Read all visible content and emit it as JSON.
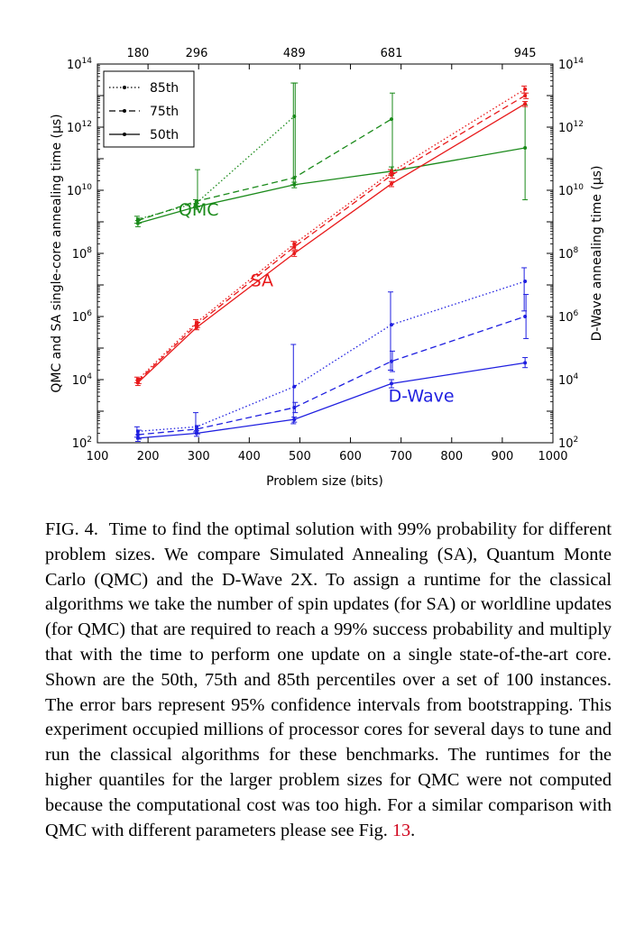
{
  "chart_data": {
    "type": "line",
    "xlabel": "Problem size (bits)",
    "ylabel_left": "QMC and SA single-core annealing time (μs)",
    "ylabel_right": "D-Wave annealing time (μs)",
    "xlim": [
      100,
      1000
    ],
    "ylim": [
      100,
      100000000000000
    ],
    "yscale": "log",
    "x_ticks": [
      "100",
      "200",
      "300",
      "400",
      "500",
      "600",
      "700",
      "800",
      "900",
      "1000"
    ],
    "top_ticks": [
      {
        "x": 180,
        "label": "180"
      },
      {
        "x": 296,
        "label": "296"
      },
      {
        "x": 489,
        "label": "489"
      },
      {
        "x": 681,
        "label": "681"
      },
      {
        "x": 945,
        "label": "945"
      }
    ],
    "y_tick_exponents": [
      "2",
      "4",
      "6",
      "8",
      "10",
      "12",
      "14"
    ],
    "legend": {
      "placement": "top-left",
      "entries": [
        {
          "label": "85th",
          "dash": "dotted"
        },
        {
          "label": "75th",
          "dash": "dashed"
        },
        {
          "label": "50th",
          "dash": "solid"
        }
      ]
    },
    "series": [
      {
        "group": "QMC",
        "quantile": "85th",
        "color": "#1a8a1a",
        "dash": "dotted",
        "x": [
          180,
          296,
          489
        ],
        "y": [
          1200000000.0,
          4000000000.0,
          2200000000000.0
        ],
        "err": [
          [
            900000000.0,
            1500000000.0
          ],
          [
            3000000000.0,
            5000000000.0
          ],
          [
            15000000000.0,
            25000000000000.0
          ]
        ]
      },
      {
        "group": "QMC",
        "quantile": "75th",
        "color": "#1a8a1a",
        "dash": "dashed",
        "x": [
          180,
          296,
          489,
          681
        ],
        "y": [
          1100000000.0,
          4500000000.0,
          25000000000.0,
          1800000000000.0
        ],
        "err": [
          [
            900000000.0,
            1300000000.0
          ],
          [
            3000000000.0,
            45000000000.0
          ],
          [
            15000000000.0,
            25000000000000.0
          ],
          [
            35000000000.0,
            12000000000000.0
          ]
        ]
      },
      {
        "group": "QMC",
        "quantile": "50th",
        "color": "#1a8a1a",
        "dash": "solid",
        "x": [
          180,
          296,
          489,
          681,
          945
        ],
        "y": [
          900000000.0,
          3000000000.0,
          15000000000.0,
          40000000000.0,
          220000000000.0
        ],
        "err": [
          [
            700000000.0,
            1100000000.0
          ],
          [
            2500000000.0,
            3800000000.0
          ],
          [
            12000000000.0,
            18000000000.0
          ],
          [
            30000000000.0,
            55000000000.0
          ],
          [
            5000000000.0,
            5000000000000.0
          ]
        ]
      },
      {
        "group": "SA",
        "quantile": "85th",
        "color": "#e8191a",
        "dash": "dotted",
        "x": [
          180,
          296,
          489,
          681,
          945
        ],
        "y": [
          10000.0,
          650000.0,
          200000000.0,
          38000000000.0,
          16000000000000.0
        ],
        "err": [
          [
            8000.0,
            12000.0
          ],
          [
            500000.0,
            800000.0
          ],
          [
            160000000.0,
            240000000.0
          ],
          [
            30000000000.0,
            45000000000.0
          ],
          [
            12000000000000.0,
            20000000000000.0
          ]
        ]
      },
      {
        "group": "SA",
        "quantile": "75th",
        "color": "#e8191a",
        "dash": "dashed",
        "x": [
          180,
          296,
          489,
          681,
          945
        ],
        "y": [
          9000.0,
          550000.0,
          160000000.0,
          30000000000.0,
          10000000000000.0
        ],
        "err": [
          [
            7500.0,
            11000.0
          ],
          [
            450000.0,
            650000.0
          ],
          [
            130000000.0,
            190000000.0
          ],
          [
            24000000000.0,
            36000000000.0
          ],
          [
            8000000000000.0,
            12000000000000.0
          ]
        ]
      },
      {
        "group": "SA",
        "quantile": "50th",
        "color": "#e8191a",
        "dash": "solid",
        "x": [
          180,
          296,
          489,
          681,
          945
        ],
        "y": [
          8000.0,
          450000.0,
          100000000.0,
          16000000000.0,
          5500000000000.0
        ],
        "err": [
          [
            6500.0,
            9500.0
          ],
          [
            380000.0,
            520000.0
          ],
          [
            80000000.0,
            120000000.0
          ],
          [
            13000000000.0,
            19000000000.0
          ],
          [
            4500000000000.0,
            6500000000000.0
          ]
        ]
      },
      {
        "group": "D-Wave",
        "quantile": "85th",
        "color": "#1f1fe0",
        "dash": "dotted",
        "x": [
          180,
          296,
          489,
          681,
          945
        ],
        "y": [
          230.0,
          320.0,
          6000.0,
          550000.0,
          13000000.0
        ],
        "err": [
          [
            150.0,
            320.0
          ],
          [
            220.0,
            900.0
          ],
          [
            400.0,
            130000.0
          ],
          [
            20000.0,
            6000000.0
          ],
          [
            1500000.0,
            35000000.0
          ]
        ]
      },
      {
        "group": "D-Wave",
        "quantile": "75th",
        "color": "#1f1fe0",
        "dash": "dashed",
        "x": [
          180,
          296,
          489,
          681,
          945
        ],
        "y": [
          180.0,
          270.0,
          1300.0,
          38000.0,
          1000000.0
        ],
        "err": [
          [
            130.0,
            250.0
          ],
          [
            190.0,
            350.0
          ],
          [
            900.0,
            1900.0
          ],
          [
            18000.0,
            80000.0
          ],
          [
            200000.0,
            5000000.0
          ]
        ]
      },
      {
        "group": "D-Wave",
        "quantile": "50th",
        "color": "#1f1fe0",
        "dash": "solid",
        "x": [
          180,
          296,
          489,
          681,
          945
        ],
        "y": [
          140.0,
          200.0,
          550.0,
          7500.0,
          34000.0
        ],
        "err": [
          [
            110.0,
            180.0
          ],
          [
            160.0,
            240.0
          ],
          [
            450.0,
            650.0
          ],
          [
            5500.0,
            10000.0
          ],
          [
            24000.0,
            50000.0
          ]
        ]
      }
    ],
    "annotations": [
      {
        "text": "QMC",
        "color": "#1a8a1a",
        "x": 300,
        "y": 1600000000.0
      },
      {
        "text": "SA",
        "color": "#e8191a",
        "x": 425,
        "y": 9000000.0
      },
      {
        "text": "D-Wave",
        "color": "#1f1fe0",
        "x": 740,
        "y": 2000.0
      }
    ]
  },
  "caption": {
    "label": "FIG. 4.",
    "text": "Time to find the optimal solution with 99% probability for different problem sizes. We compare Simulated Annealing (SA), Quantum Monte Carlo (QMC) and the D-Wave 2X. To assign a runtime for the classical algorithms we take the number of spin updates (for SA) or worldline updates (for QMC) that are required to reach a 99% success probability and multiply that with the time to perform one update on a single state-of-the-art core. Shown are the 50th, 75th and 85th percentiles over a set of 100 instances. The error bars represent 95% confidence intervals from bootstrapping. This experiment occupied millions of processor cores for several days to tune and run the classical algorithms for these benchmarks. The runtimes for the higher quantiles for the larger problem sizes for QMC were not computed because the computational cost was too high. For a similar comparison with QMC with different parameters please see Fig.",
    "ref": "13",
    "end": "."
  }
}
